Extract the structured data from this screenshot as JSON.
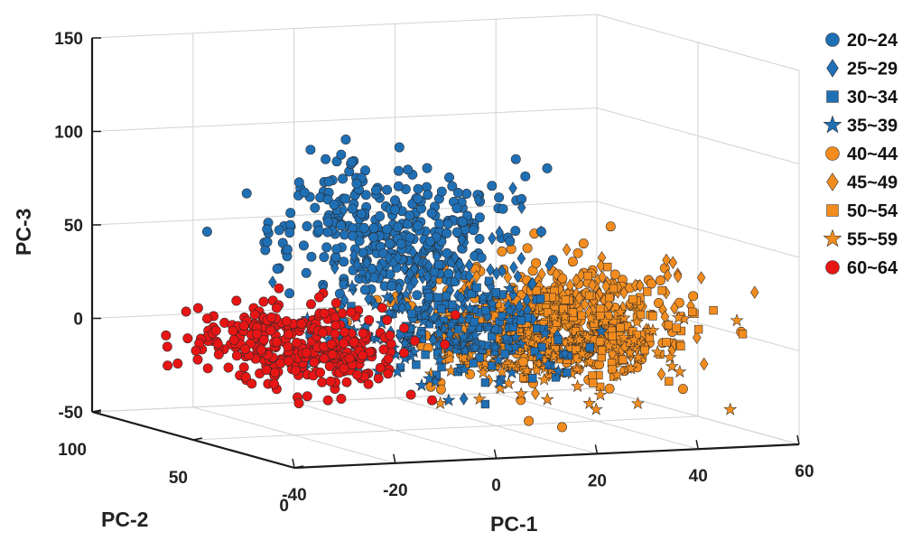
{
  "chart_data": {
    "type": "scatter",
    "projection": "3d",
    "grid": true,
    "legend_position": "right",
    "axes": {
      "x": {
        "label": "PC-1",
        "range": [
          -40,
          60
        ],
        "ticks": [
          "-40",
          "-20",
          "0",
          "20",
          "40",
          "60"
        ]
      },
      "y": {
        "label": "PC-2",
        "range": [
          0,
          100
        ],
        "ticks": [
          "0",
          "50",
          "100"
        ]
      },
      "z": {
        "label": "PC-3",
        "range": [
          -50,
          150
        ],
        "ticks": [
          "-50",
          "0",
          "50",
          "100",
          "150"
        ]
      }
    },
    "series": [
      {
        "name": "20~24",
        "marker": "circle",
        "color": "#1f6fb5",
        "center": [
          -4,
          40,
          58
        ],
        "spread": [
          10,
          14,
          18
        ],
        "count": 330
      },
      {
        "name": "25~29",
        "marker": "diamond",
        "color": "#1f6fb5",
        "center": [
          4,
          38,
          30
        ],
        "spread": [
          10,
          14,
          18
        ],
        "count": 120
      },
      {
        "name": "30~34",
        "marker": "square",
        "color": "#1f6fb5",
        "center": [
          8,
          36,
          8
        ],
        "spread": [
          9,
          14,
          12
        ],
        "count": 110
      },
      {
        "name": "35~39",
        "marker": "star",
        "color": "#1f6fb5",
        "center": [
          2,
          36,
          0
        ],
        "spread": [
          12,
          14,
          14
        ],
        "count": 90
      },
      {
        "name": "40~44",
        "marker": "circle",
        "color": "#f28c1e",
        "center": [
          22,
          34,
          10
        ],
        "spread": [
          12,
          14,
          16
        ],
        "count": 340
      },
      {
        "name": "45~49",
        "marker": "diamond",
        "color": "#f28c1e",
        "center": [
          30,
          36,
          12
        ],
        "spread": [
          11,
          14,
          14
        ],
        "count": 170
      },
      {
        "name": "50~54",
        "marker": "square",
        "color": "#f28c1e",
        "center": [
          28,
          34,
          4
        ],
        "spread": [
          11,
          14,
          12
        ],
        "count": 170
      },
      {
        "name": "55~59",
        "marker": "star",
        "color": "#f28c1e",
        "center": [
          24,
          34,
          -6
        ],
        "spread": [
          12,
          14,
          10
        ],
        "count": 120
      },
      {
        "name": "60~64",
        "marker": "circle",
        "color": "#e81515",
        "center": [
          -22,
          42,
          0
        ],
        "spread": [
          8,
          14,
          11
        ],
        "count": 330
      }
    ]
  }
}
